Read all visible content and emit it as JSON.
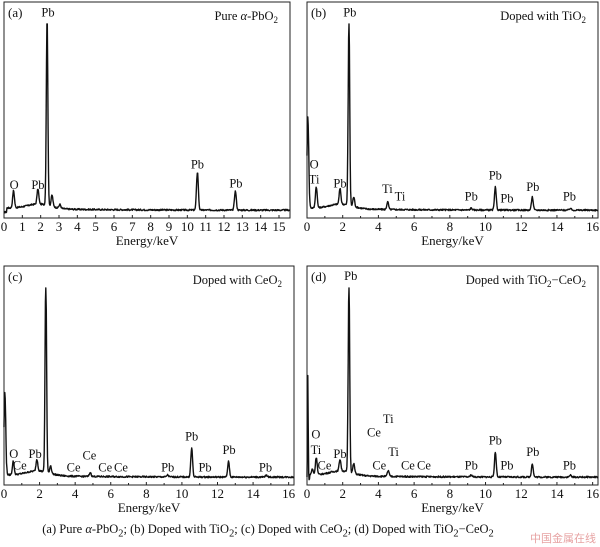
{
  "chart_data": [
    {
      "type": "line",
      "panel": "(a)",
      "title": "Pure α-PbO2",
      "title_parts": {
        "pre": "Pure ",
        "italic": "α",
        "post": "-PbO",
        "sub": "2",
        "post2": ""
      },
      "xlabel": "Energy/keV",
      "ylabel": "",
      "xlim": [
        0,
        15.6
      ],
      "xticks": [
        "0",
        "1",
        "2",
        "3",
        "4",
        "5",
        "6",
        "7",
        "8",
        "9",
        "10",
        "11",
        "12",
        "13",
        "14",
        "15"
      ],
      "xtick_values": [
        0,
        1,
        2,
        3,
        4,
        5,
        6,
        7,
        8,
        9,
        10,
        11,
        12,
        13,
        14,
        15
      ],
      "peaks": [
        {
          "x": 0.52,
          "h": 0.09,
          "label": "O"
        },
        {
          "x": 1.85,
          "h": 0.08,
          "label": "Pb"
        },
        {
          "x": 2.35,
          "h": 1.0,
          "label": "Pb"
        },
        {
          "x": 2.62,
          "h": 0.06,
          "label": ""
        },
        {
          "x": 3.05,
          "h": 0.02,
          "label": ""
        },
        {
          "x": 10.55,
          "h": 0.2,
          "label": "Pb"
        },
        {
          "x": 12.62,
          "h": 0.1,
          "label": "Pb"
        }
      ],
      "labels": [
        {
          "text": "O",
          "x": 0.55,
          "h": 0.12
        },
        {
          "text": "Pb",
          "x": 1.85,
          "h": 0.12
        },
        {
          "text": "Pb",
          "x": 2.4,
          "h": 1.03
        },
        {
          "text": "Pb",
          "x": 10.55,
          "h": 0.23
        },
        {
          "text": "Pb",
          "x": 12.65,
          "h": 0.13
        }
      ],
      "grid": false
    },
    {
      "type": "line",
      "panel": "(b)",
      "title": "Doped with TiO2",
      "title_parts": {
        "pre": "Doped with TiO",
        "italic": "",
        "post": "",
        "sub": "2",
        "post2": ""
      },
      "xlabel": "Energy/keV",
      "ylabel": "",
      "xlim": [
        0,
        16.3
      ],
      "xticks": [
        "0",
        "2",
        "4",
        "6",
        "8",
        "10",
        "12",
        "14",
        "16"
      ],
      "xtick_values": [
        0,
        2,
        4,
        6,
        8,
        10,
        12,
        14,
        16
      ],
      "peaks": [
        {
          "x": 0.05,
          "h": 0.5,
          "label": ""
        },
        {
          "x": 0.52,
          "h": 0.11,
          "label": "O Ti"
        },
        {
          "x": 1.85,
          "h": 0.08,
          "label": "Pb"
        },
        {
          "x": 2.35,
          "h": 1.0,
          "label": "Pb"
        },
        {
          "x": 2.62,
          "h": 0.05,
          "label": ""
        },
        {
          "x": 4.52,
          "h": 0.04,
          "label": "Ti"
        },
        {
          "x": 9.2,
          "h": 0.01,
          "label": "Pb"
        },
        {
          "x": 10.55,
          "h": 0.12,
          "label": "Pb"
        },
        {
          "x": 12.62,
          "h": 0.07,
          "label": "Pb"
        },
        {
          "x": 14.75,
          "h": 0.01,
          "label": "Pb"
        }
      ],
      "labels": [
        {
          "text": "O",
          "x": 0.4,
          "h": 0.23
        },
        {
          "text": "Ti",
          "x": 0.4,
          "h": 0.15
        },
        {
          "text": "Pb",
          "x": 1.85,
          "h": 0.13
        },
        {
          "text": "Pb",
          "x": 2.4,
          "h": 1.03
        },
        {
          "text": "Ti",
          "x": 4.5,
          "h": 0.1
        },
        {
          "text": "Ti",
          "x": 5.1,
          "h": 0.06
        },
        {
          "text": "Pb",
          "x": 9.2,
          "h": 0.06
        },
        {
          "text": "Pb",
          "x": 10.55,
          "h": 0.17
        },
        {
          "text": "Pb",
          "x": 11.2,
          "h": 0.05
        },
        {
          "text": "Pb",
          "x": 12.65,
          "h": 0.11
        },
        {
          "text": "Pb",
          "x": 14.7,
          "h": 0.06
        }
      ],
      "grid": false
    },
    {
      "type": "line",
      "panel": "(c)",
      "title": "Doped with CeO2",
      "title_parts": {
        "pre": "Doped with CeO",
        "italic": "",
        "post": "",
        "sub": "2",
        "post2": ""
      },
      "xlabel": "Energy/keV",
      "ylabel": "",
      "xlim": [
        0,
        16.3
      ],
      "xticks": [
        "0",
        "2",
        "4",
        "6",
        "8",
        "10",
        "12",
        "14",
        "16"
      ],
      "xtick_values": [
        0,
        2,
        4,
        6,
        8,
        10,
        12,
        14,
        16
      ],
      "peaks": [
        {
          "x": 0.05,
          "h": 0.45,
          "label": ""
        },
        {
          "x": 0.52,
          "h": 0.07,
          "label": "O"
        },
        {
          "x": 1.85,
          "h": 0.06,
          "label": "Pb"
        },
        {
          "x": 2.35,
          "h": 1.0,
          "label": "Pb"
        },
        {
          "x": 2.62,
          "h": 0.04,
          "label": ""
        },
        {
          "x": 4.85,
          "h": 0.02,
          "label": "Ce"
        },
        {
          "x": 9.2,
          "h": 0.01,
          "label": "Pb"
        },
        {
          "x": 10.55,
          "h": 0.15,
          "label": "Pb"
        },
        {
          "x": 12.62,
          "h": 0.08,
          "label": "Pb"
        },
        {
          "x": 14.75,
          "h": 0.01,
          "label": "Pb"
        }
      ],
      "labels": [
        {
          "text": "O",
          "x": 0.55,
          "h": 0.11
        },
        {
          "text": "Ce",
          "x": 1.0,
          "h": 0.05
        },
        {
          "text": "Pb",
          "x": 1.75,
          "h": 0.11
        },
        {
          "text": "Ce",
          "x": 4.8,
          "h": 0.1
        },
        {
          "text": "Ce",
          "x": 4.25,
          "h": 0.04
        },
        {
          "text": "Ce",
          "x": 5.25,
          "h": 0.04
        },
        {
          "text": "Ce",
          "x": 6.1,
          "h": 0.04
        },
        {
          "text": "Pb",
          "x": 9.2,
          "h": 0.04
        },
        {
          "text": "Pb",
          "x": 10.55,
          "h": 0.2
        },
        {
          "text": "Pb",
          "x": 11.3,
          "h": 0.04
        },
        {
          "text": "Pb",
          "x": 12.65,
          "h": 0.13
        },
        {
          "text": "Pb",
          "x": 14.7,
          "h": 0.04
        }
      ],
      "grid": false
    },
    {
      "type": "line",
      "panel": "(d)",
      "title": "Doped with TiO2−CeO2",
      "title_parts": {
        "pre": "Doped with TiO",
        "italic": "",
        "post": "",
        "sub": "2",
        "post2": "−CeO2"
      },
      "xlabel": "Energy/keV",
      "ylabel": "",
      "xlim": [
        0,
        16.3
      ],
      "xticks": [
        "0",
        "2",
        "4",
        "6",
        "8",
        "10",
        "12",
        "14",
        "16"
      ],
      "xtick_values": [
        0,
        2,
        4,
        6,
        8,
        10,
        12,
        14,
        16
      ],
      "peaks": [
        {
          "x": 0.05,
          "h": 0.55,
          "label": ""
        },
        {
          "x": 0.3,
          "h": 0.03,
          "label": ""
        },
        {
          "x": 0.52,
          "h": 0.09,
          "label": "O Ti"
        },
        {
          "x": 1.85,
          "h": 0.06,
          "label": "Pb"
        },
        {
          "x": 2.35,
          "h": 1.0,
          "label": "Pb"
        },
        {
          "x": 2.62,
          "h": 0.05,
          "label": ""
        },
        {
          "x": 4.55,
          "h": 0.03,
          "label": "Ti Ce"
        },
        {
          "x": 9.2,
          "h": 0.01,
          "label": "Pb"
        },
        {
          "x": 10.55,
          "h": 0.13,
          "label": "Pb"
        },
        {
          "x": 12.62,
          "h": 0.07,
          "label": "Pb"
        },
        {
          "x": 14.75,
          "h": 0.01,
          "label": "Pb"
        }
      ],
      "labels": [
        {
          "text": "O",
          "x": 0.5,
          "h": 0.21
        },
        {
          "text": "Ti",
          "x": 0.5,
          "h": 0.13
        },
        {
          "text": "Ce",
          "x": 1.2,
          "h": 0.05
        },
        {
          "text": "Pb",
          "x": 1.85,
          "h": 0.11
        },
        {
          "text": "Pb",
          "x": 2.45,
          "h": 1.03
        },
        {
          "text": "Ti",
          "x": 4.55,
          "h": 0.29
        },
        {
          "text": "Ce",
          "x": 4.55,
          "h": 0.22
        },
        {
          "text": "Ti",
          "x": 4.85,
          "h": 0.12
        },
        {
          "text": "Ce",
          "x": 4.05,
          "h": 0.05
        },
        {
          "text": "Ce",
          "x": 5.35,
          "h": 0.05
        },
        {
          "text": "Ce",
          "x": 6.55,
          "h": 0.05
        },
        {
          "text": "Pb",
          "x": 9.2,
          "h": 0.05
        },
        {
          "text": "Pb",
          "x": 10.55,
          "h": 0.18
        },
        {
          "text": "Pb",
          "x": 11.2,
          "h": 0.05
        },
        {
          "text": "Pb",
          "x": 12.65,
          "h": 0.12
        },
        {
          "text": "Pb",
          "x": 14.7,
          "h": 0.05
        }
      ],
      "grid": false
    }
  ],
  "caption": {
    "a_prefix": "(a) Pure ",
    "alpha": "α",
    "a_rest": "-PbO",
    "sub2": "2",
    "b_text": "; (b) Doped with TiO",
    "c_text": "; (c) Doped with CeO",
    "d_text": "; (d) Doped with TiO",
    "d_tail": "−CeO"
  },
  "watermark": "中国金属在线",
  "colors": {
    "line": "#111111",
    "frame": "#222222",
    "watermark": "#e7a3a3"
  }
}
